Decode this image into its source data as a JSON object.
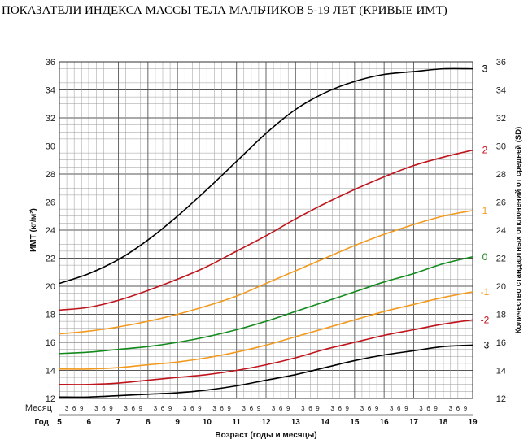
{
  "chart_data": {
    "type": "line",
    "title": "ПОКАЗАТЕЛИ ИНДЕКСА МАССЫ ТЕЛА МАЛЬЧИКОВ 5-19 ЛЕТ (КРИВЫЕ ИМТ)",
    "ylabel": "ИМТ (кг/м²)",
    "ylabel_right": "Количество стандартных отклонений от средней (SD)",
    "xlabel": "Возраст (годы и месяцы)",
    "x_row1_label": "Месяц",
    "x_row2_label": "Год",
    "month_ticks": [
      "3",
      "6",
      "9"
    ],
    "xlim": [
      5,
      19
    ],
    "ylim": [
      12,
      36
    ],
    "x_ticks": [
      "5",
      "6",
      "7",
      "8",
      "9",
      "10",
      "11",
      "12",
      "13",
      "14",
      "15",
      "16",
      "17",
      "18",
      "19"
    ],
    "y_ticks": [
      "12",
      "14",
      "16",
      "18",
      "20",
      "22",
      "24",
      "26",
      "28",
      "30",
      "32",
      "34",
      "36"
    ],
    "grid": true,
    "series": [
      {
        "name": "3",
        "color": "#000000",
        "x": [
          5,
          6,
          7,
          8,
          9,
          10,
          11,
          12,
          13,
          14,
          15,
          16,
          17,
          18,
          19
        ],
        "y": [
          20.2,
          20.9,
          21.9,
          23.3,
          25.0,
          26.9,
          28.9,
          30.9,
          32.6,
          33.8,
          34.6,
          35.1,
          35.3,
          35.5,
          35.5
        ]
      },
      {
        "name": "2",
        "color": "#c0141c",
        "x": [
          5,
          6,
          7,
          8,
          9,
          10,
          11,
          12,
          13,
          14,
          15,
          16,
          17,
          18,
          19
        ],
        "y": [
          18.3,
          18.5,
          19.0,
          19.7,
          20.5,
          21.4,
          22.5,
          23.6,
          24.8,
          25.9,
          26.9,
          27.8,
          28.6,
          29.2,
          29.7
        ]
      },
      {
        "name": "1",
        "color": "#f39a1e",
        "x": [
          5,
          6,
          7,
          8,
          9,
          10,
          11,
          12,
          13,
          14,
          15,
          16,
          17,
          18,
          19
        ],
        "y": [
          16.6,
          16.8,
          17.1,
          17.5,
          18.0,
          18.6,
          19.3,
          20.2,
          21.1,
          22.0,
          22.9,
          23.7,
          24.4,
          25.0,
          25.4
        ]
      },
      {
        "name": "0",
        "color": "#138a1d",
        "x": [
          5,
          6,
          7,
          8,
          9,
          10,
          11,
          12,
          13,
          14,
          15,
          16,
          17,
          18,
          19
        ],
        "y": [
          15.2,
          15.3,
          15.5,
          15.7,
          16.0,
          16.4,
          16.9,
          17.5,
          18.2,
          18.9,
          19.6,
          20.3,
          20.9,
          21.6,
          22.1
        ]
      },
      {
        "name": "-1",
        "color": "#f39a1e",
        "x": [
          5,
          6,
          7,
          8,
          9,
          10,
          11,
          12,
          13,
          14,
          15,
          16,
          17,
          18,
          19
        ],
        "y": [
          14.1,
          14.1,
          14.2,
          14.4,
          14.6,
          14.9,
          15.3,
          15.8,
          16.4,
          17.0,
          17.6,
          18.2,
          18.7,
          19.2,
          19.6
        ]
      },
      {
        "name": "-2",
        "color": "#c0141c",
        "x": [
          5,
          6,
          7,
          8,
          9,
          10,
          11,
          12,
          13,
          14,
          15,
          16,
          17,
          18,
          19
        ],
        "y": [
          13.0,
          13.0,
          13.1,
          13.3,
          13.5,
          13.7,
          14.0,
          14.4,
          14.9,
          15.5,
          16.0,
          16.5,
          16.9,
          17.3,
          17.6
        ]
      },
      {
        "name": "-3",
        "color": "#000000",
        "x": [
          5,
          6,
          7,
          8,
          9,
          10,
          11,
          12,
          13,
          14,
          15,
          16,
          17,
          18,
          19
        ],
        "y": [
          12.1,
          12.1,
          12.2,
          12.3,
          12.4,
          12.6,
          12.9,
          13.3,
          13.7,
          14.2,
          14.7,
          15.1,
          15.4,
          15.7,
          15.8
        ]
      }
    ]
  }
}
